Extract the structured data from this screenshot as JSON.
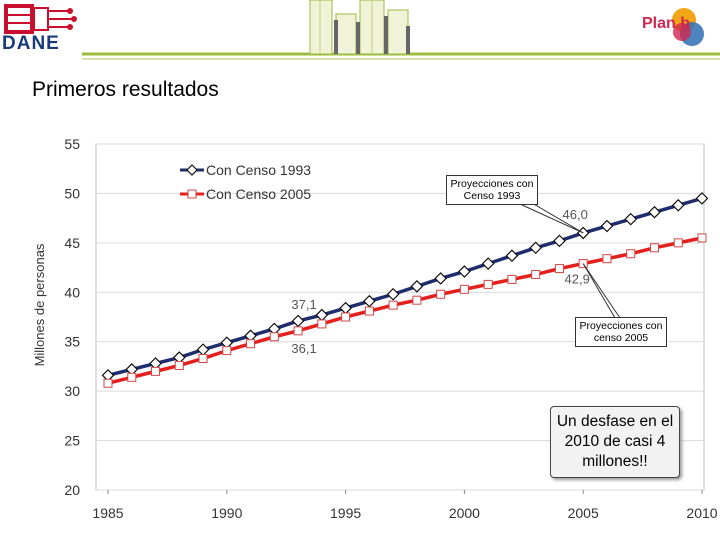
{
  "header": {
    "logo_text": "DANE",
    "planb_text": "Plan b"
  },
  "page_title": "Primeros resultados",
  "colors": {
    "series_1993": "#1f2d6e",
    "series_2005": "#e3201b",
    "header_green": "#9dbb3c"
  },
  "callouts": {
    "censo_1993": "Proyecciones con Censo 1993",
    "censo_2005": "Proyecciones con censo 2005",
    "note": "Un desfase en el 2010 de casi 4 millones!!"
  },
  "chart_data": {
    "type": "line",
    "title": "",
    "xlabel": "",
    "ylabel": "Millones de personas",
    "xlim": [
      1985,
      2010
    ],
    "ylim": [
      20,
      55
    ],
    "x_ticks": [
      1985,
      1990,
      1995,
      2000,
      2005,
      2010
    ],
    "y_ticks": [
      20,
      25,
      30,
      35,
      40,
      45,
      50,
      55
    ],
    "legend_position": "top-left",
    "x": [
      1985,
      1986,
      1987,
      1988,
      1989,
      1990,
      1991,
      1992,
      1993,
      1994,
      1995,
      1996,
      1997,
      1998,
      1999,
      2000,
      2001,
      2002,
      2003,
      2004,
      2005,
      2006,
      2007,
      2008,
      2009,
      2010
    ],
    "series": [
      {
        "name": "Con Censo 1993",
        "marker": "diamond",
        "values": [
          31.6,
          32.2,
          32.8,
          33.4,
          34.2,
          34.9,
          35.6,
          36.3,
          37.1,
          37.7,
          38.4,
          39.1,
          39.8,
          40.6,
          41.4,
          42.1,
          42.9,
          43.7,
          44.5,
          45.2,
          46.0,
          46.7,
          47.4,
          48.1,
          48.8,
          49.5
        ]
      },
      {
        "name": "Con Censo 2005",
        "marker": "square",
        "values": [
          30.8,
          31.4,
          32.0,
          32.6,
          33.3,
          34.1,
          34.8,
          35.5,
          36.1,
          36.8,
          37.5,
          38.1,
          38.7,
          39.2,
          39.8,
          40.3,
          40.8,
          41.3,
          41.8,
          42.4,
          42.9,
          43.4,
          43.9,
          44.5,
          45.0,
          45.5
        ]
      }
    ],
    "annotations": [
      {
        "text": "37,1",
        "x": 1993,
        "y": 37.1,
        "series": 0
      },
      {
        "text": "36,1",
        "x": 1993,
        "y": 36.1,
        "series": 1
      },
      {
        "text": "46,0",
        "x": 2005,
        "y": 46.0,
        "series": 0
      },
      {
        "text": "42,9",
        "x": 2005,
        "y": 42.9,
        "series": 1
      }
    ]
  }
}
